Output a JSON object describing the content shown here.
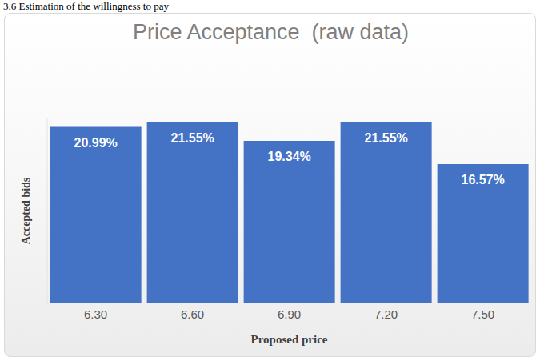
{
  "heading": "3.6 Estimation of the willingness to pay",
  "chart_data": {
    "type": "bar",
    "title": "Price Acceptance  (raw data)",
    "x_label": "Proposed price",
    "y_label": "Accepted bids",
    "categories": [
      "6.30",
      "6.60",
      "6.90",
      "7.20",
      "7.50"
    ],
    "values": [
      20.99,
      21.55,
      19.34,
      21.55,
      16.57
    ],
    "value_labels": [
      "20.99%",
      "21.55%",
      "19.34%",
      "21.55%",
      "16.57%"
    ],
    "color": "#4472c4",
    "ylim": [
      0,
      22
    ],
    "grid": false,
    "data_labels": true,
    "tick_labels": "x"
  }
}
